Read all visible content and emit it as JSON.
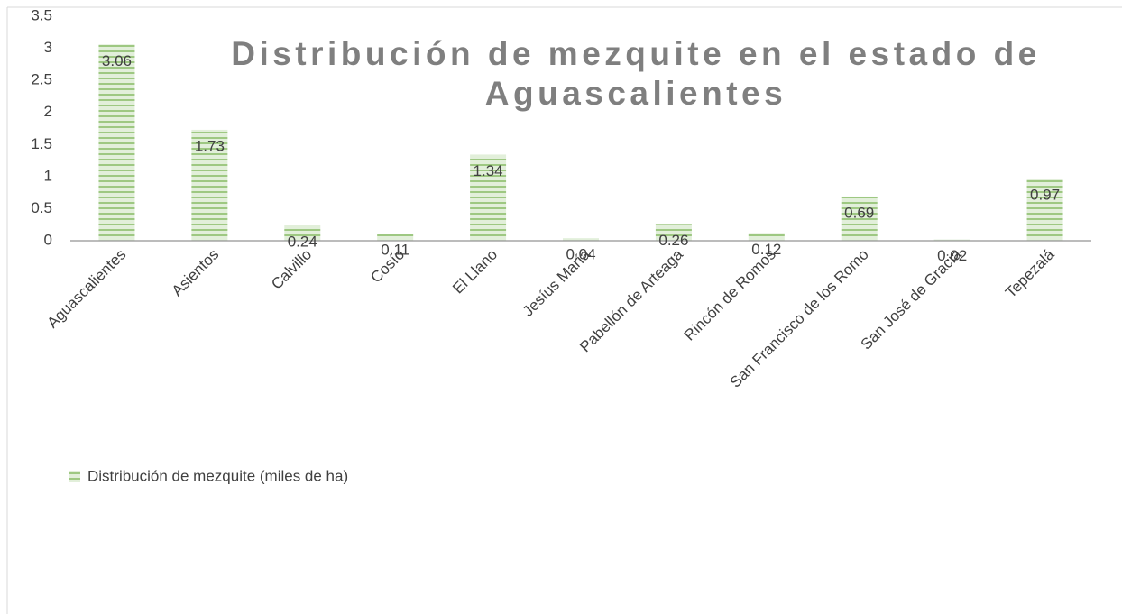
{
  "chart_data": {
    "type": "bar",
    "title": "Distribución de mezquite en el estado de Aguascalientes",
    "categories": [
      "Aguascalientes",
      "Asientos",
      "Calvillo",
      "Cosío",
      "El Llano",
      "Jesíus María",
      "Pabellón de Arteaga",
      "Rincón de Romos",
      "San Francisco de los Romo",
      "San José de Gracia",
      "Tepezalá"
    ],
    "series": [
      {
        "name": "Distribución de mezquite (miles de ha)",
        "color": "#70ad47",
        "values": [
          3.06,
          1.73,
          0.24,
          0.11,
          1.34,
          0.04,
          0.26,
          0.12,
          0.69,
          0.02,
          0.97
        ]
      }
    ],
    "ylim": [
      0,
      3.5
    ],
    "yticks": [
      0,
      0.5,
      1,
      1.5,
      2,
      2.5,
      3,
      3.5
    ],
    "grid": false,
    "legend": "bottom-left"
  }
}
